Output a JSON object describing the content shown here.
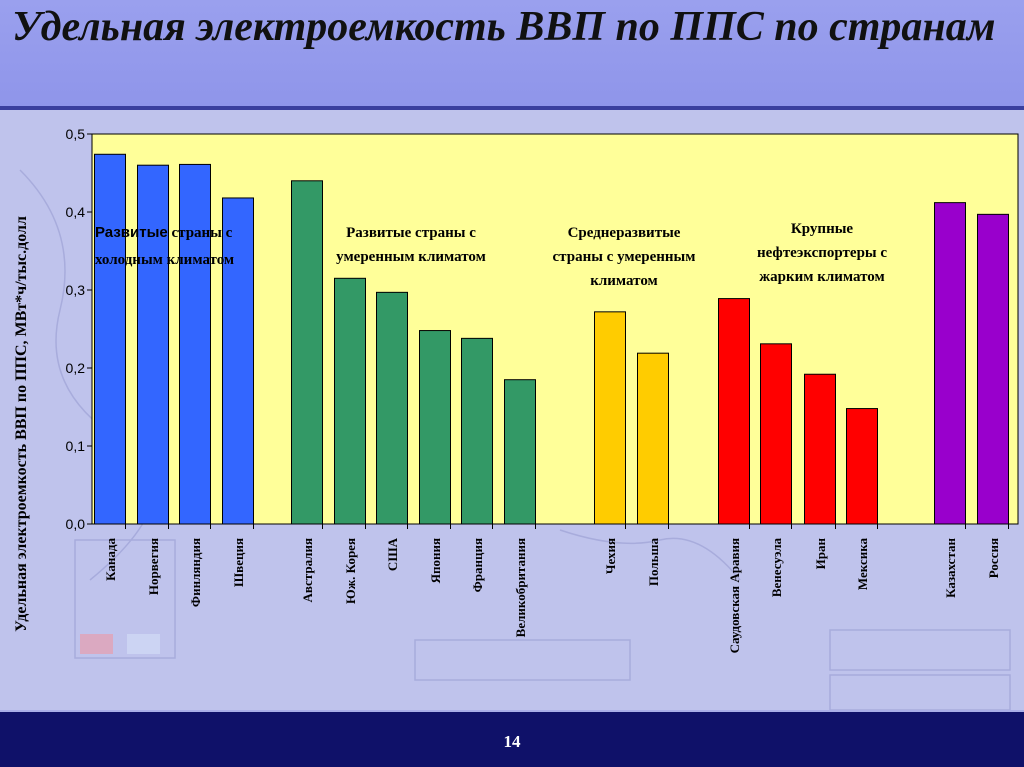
{
  "slide": {
    "title": "Удельная электроемкость ВВП по ППС по странам",
    "page_number": "14"
  },
  "colors": {
    "background": "#bfc3ec",
    "plot_background": "#ffff99",
    "title_band": "#9aa0ee",
    "footer": "#0f1169",
    "cold": "#3366ff",
    "temperate": "#339966",
    "developing": "#ffcc00",
    "oil": "#ff0000",
    "other": "#9900cc"
  },
  "chart_data": {
    "type": "bar",
    "title": "",
    "ylabel": "Удельная электроемкость ВВП по ППС, МВт*ч/тыс.долл",
    "xlabel": "",
    "ylim": [
      0,
      0.5
    ],
    "yticks": [
      "0,0",
      "0,1",
      "0,2",
      "0,3",
      "0,4",
      "0,5"
    ],
    "grid": false,
    "legend": "none",
    "groups": [
      {
        "label_bold_word": "Развитые",
        "label_rest_line1": " страны с",
        "label_line2": "холодным климатом",
        "color": "#3366ff",
        "categories": [
          "Канада",
          "Норвегия",
          "Финляндия",
          "Швеция"
        ],
        "values": [
          0.474,
          0.46,
          0.461,
          0.418
        ]
      },
      {
        "label_line1": "Развитые страны с",
        "label_line2": "умеренным климатом",
        "color": "#339966",
        "categories": [
          "Австралия",
          "Юж. Корея",
          "США",
          "Япония",
          "Франция",
          "Великобритания"
        ],
        "values": [
          0.44,
          0.315,
          0.297,
          0.248,
          0.238,
          0.185
        ]
      },
      {
        "label_line1": "Среднеразвитые",
        "label_line2": "страны с умеренным",
        "label_line3": "климатом",
        "color": "#ffcc00",
        "categories": [
          "Чехия",
          "Польша"
        ],
        "values": [
          0.272,
          0.219
        ]
      },
      {
        "label_line1": "Крупные",
        "label_line2": "нефтеэкспортеры с",
        "label_line3": "жарким климатом",
        "color": "#ff0000",
        "categories": [
          "Саудовская Аравия",
          "Венесуэла",
          "Иран",
          "Мексика"
        ],
        "values": [
          0.289,
          0.231,
          0.192,
          0.148
        ]
      },
      {
        "color": "#9900cc",
        "categories": [
          "Казахстан",
          "Россия"
        ],
        "values": [
          0.412,
          0.397
        ]
      }
    ]
  }
}
